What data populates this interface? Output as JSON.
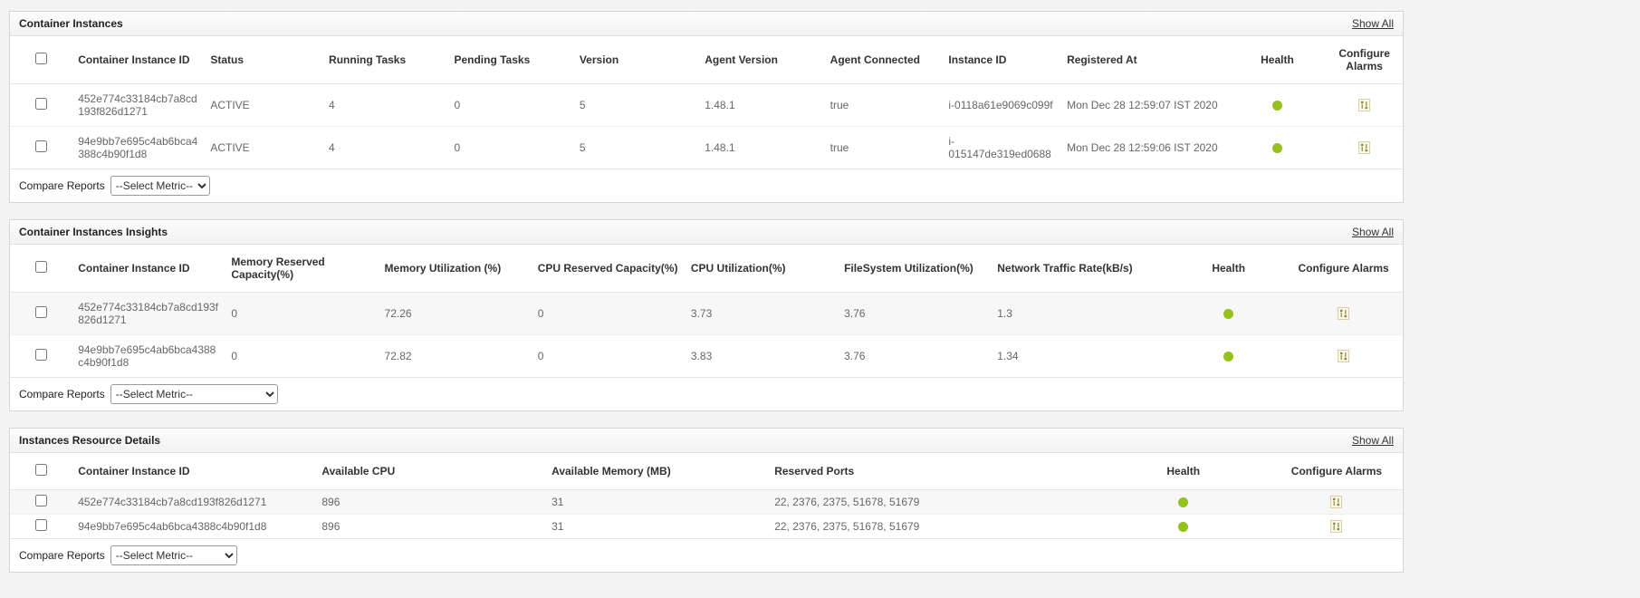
{
  "colors": {
    "health_up": "#94c11e",
    "alarm_icon_fill": "#8a8a3a",
    "alarm_icon_bg": "#fbf7ea",
    "alarm_icon_border": "#d8cfa8"
  },
  "panels": [
    {
      "title": "Container Instances",
      "show_all_label": "Show All",
      "columns": [
        "Container Instance ID",
        "Status",
        "Running Tasks",
        "Pending Tasks",
        "Version",
        "Agent Version",
        "Agent Connected",
        "Instance ID",
        "Registered At",
        "Health",
        "Configure Alarms"
      ],
      "rows": [
        {
          "cells": [
            "452e774c33184cb7a8cd193f826d1271",
            "ACTIVE",
            "4",
            "0",
            "5",
            "1.48.1",
            "true",
            "i-0118a61e9069c099f",
            "Mon Dec 28 12:59:07 IST 2020"
          ],
          "health": "up"
        },
        {
          "cells": [
            "94e9bb7e695c4ab6bca4388c4b90f1d8",
            "ACTIVE",
            "4",
            "0",
            "5",
            "1.48.1",
            "true",
            "i-015147de319ed0688",
            "Mon Dec 28 12:59:06 IST 2020"
          ],
          "health": "up"
        }
      ],
      "compare_reports_label": "Compare Reports",
      "metric_select_value": "--Select Metric--"
    },
    {
      "title": "Container Instances Insights",
      "show_all_label": "Show All",
      "columns": [
        "Container Instance ID",
        "Memory Reserved Capacity(%)",
        "Memory Utilization (%)",
        "CPU Reserved Capacity(%)",
        "CPU Utilization(%)",
        "FileSystem Utilization(%)",
        "Network Traffic Rate(kB/s)",
        "Health",
        "Configure Alarms"
      ],
      "rows": [
        {
          "cells": [
            "452e774c33184cb7a8cd193f826d1271",
            "0",
            "72.26",
            "0",
            "3.73",
            "3.76",
            "1.3"
          ],
          "health": "up"
        },
        {
          "cells": [
            "94e9bb7e695c4ab6bca4388c4b90f1d8",
            "0",
            "72.82",
            "0",
            "3.83",
            "3.76",
            "1.34"
          ],
          "health": "up"
        }
      ],
      "compare_reports_label": "Compare Reports",
      "metric_select_value": "--Select Metric--"
    },
    {
      "title": "Instances Resource Details",
      "show_all_label": "Show All",
      "columns": [
        "Container Instance ID",
        "Available CPU",
        "Available Memory (MB)",
        "Reserved Ports",
        "Health",
        "Configure Alarms"
      ],
      "rows": [
        {
          "cells": [
            "452e774c33184cb7a8cd193f826d1271",
            "896",
            "31",
            "22, 2376, 2375, 51678, 51679"
          ],
          "health": "up"
        },
        {
          "cells": [
            "94e9bb7e695c4ab6bca4388c4b90f1d8",
            "896",
            "31",
            "22, 2376, 2375, 51678, 51679"
          ],
          "health": "up"
        }
      ],
      "compare_reports_label": "Compare Reports",
      "metric_select_value": "--Select Metric--"
    }
  ]
}
